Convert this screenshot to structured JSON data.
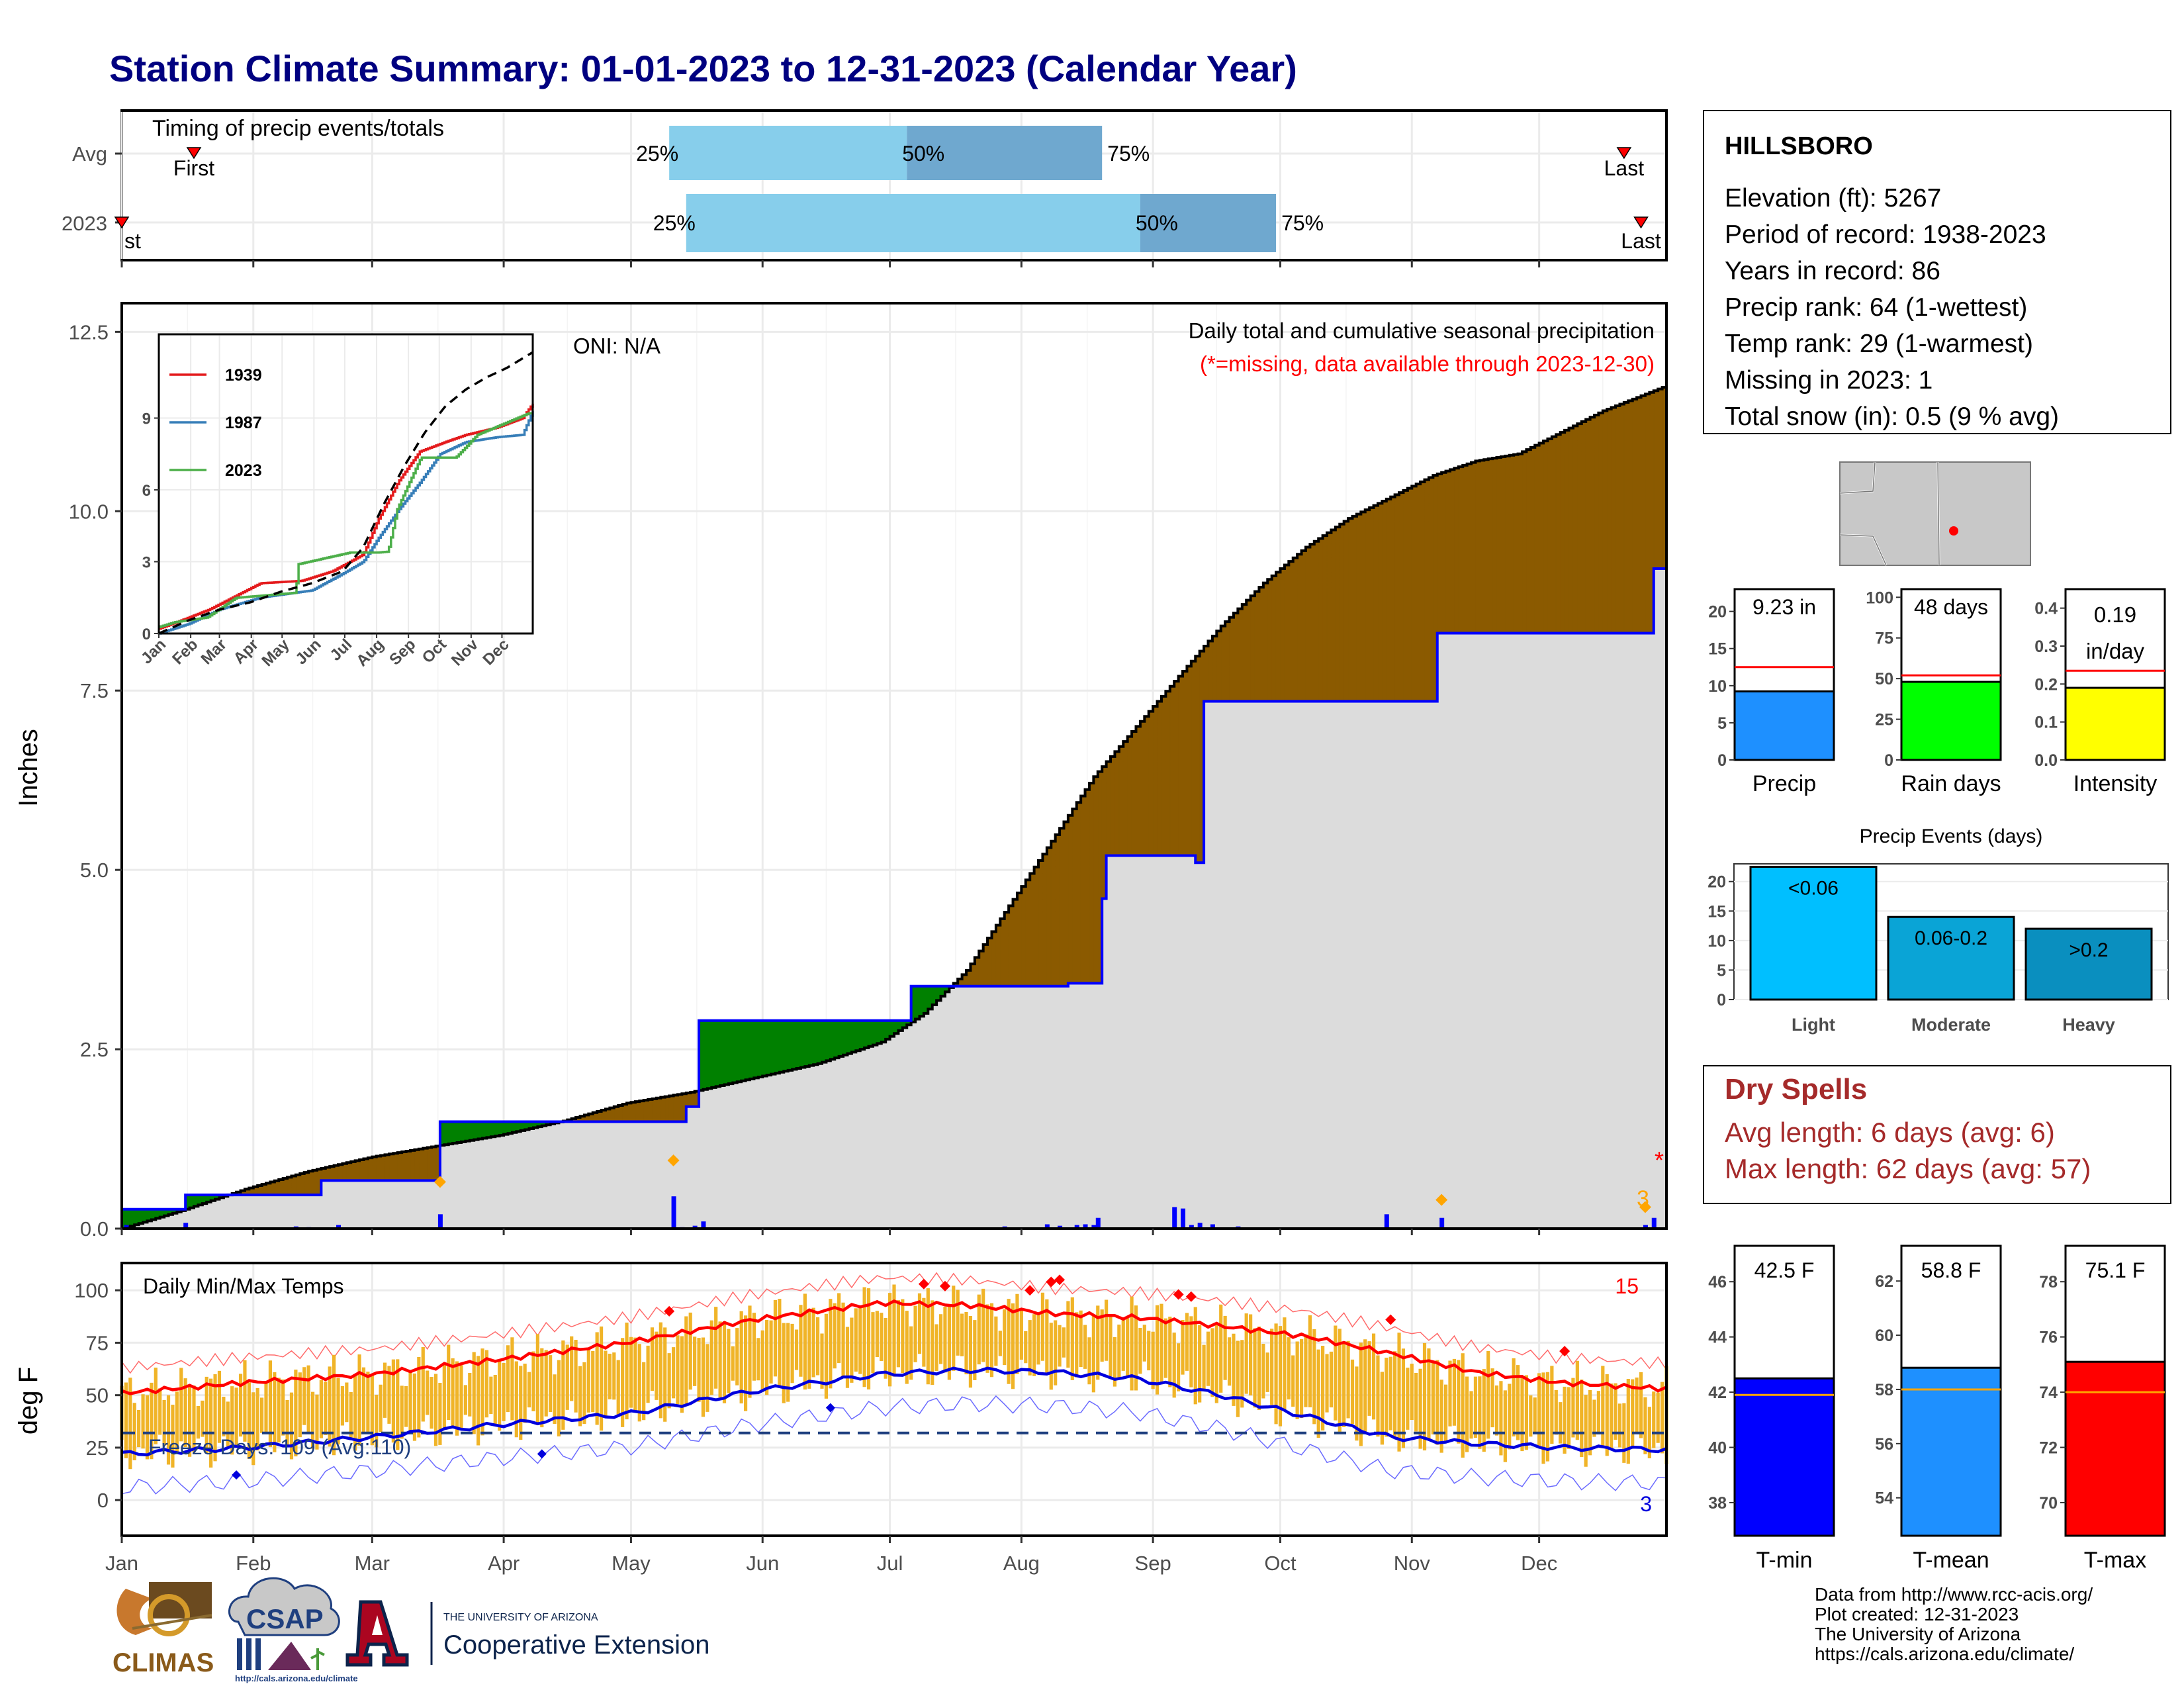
{
  "title": "Station Climate Summary: 01-01-2023 to 12-31-2023 (Calendar Year)",
  "colors": {
    "title": "#000080",
    "cumulative_2023": "#dcdcdc",
    "deficit": "#8b5a00",
    "surplus": "#008000",
    "avg_line": "#000000",
    "current_line": "#0000ff",
    "temp_bars": "#f0b428",
    "tmax_avg": "#ff0000",
    "tmin_avg": "#0000dd",
    "freeze_line": "#1f3f7f",
    "precip_tile": "#1e90ff",
    "raindays_tile": "#00ff00",
    "intensity_tile": "#ffff00",
    "light": "#00bfff",
    "moderate": "#0aa4d6",
    "heavy": "#0a8fbf",
    "dry_spell": "#a52a2a",
    "tmin_tile": "#0000ff",
    "tmean_tile": "#1e90ff",
    "tmax_tile": "#ff0000"
  },
  "timing": {
    "title": "Timing of precip events/totals",
    "rows": [
      {
        "label": "Avg",
        "p25": "25%",
        "p50": "50%",
        "p75": "75%",
        "first": "First",
        "last": "Last",
        "values": {
          "first": 18,
          "p25": 130,
          "p50": 186,
          "p75": 232,
          "last": 355
        }
      },
      {
        "label": "2023",
        "p25": "25%",
        "p50": "50%",
        "p75": "75%",
        "first": "First",
        "last": "Last",
        "values": {
          "first": 1,
          "p25": 134,
          "p50": 241,
          "p75": 273,
          "last": 359
        }
      }
    ],
    "first_clipped_text": "st"
  },
  "chart_data": [
    {
      "type": "area",
      "name": "cumulative-precip",
      "title": "Daily total and cumulative seasonal precipitation",
      "subtitle": "(*=missing, data available through 2023-12-30)",
      "annotation": "ONI: N/A",
      "ylabel": "Inches",
      "ylim": [
        0,
        12.9
      ],
      "yticks": [
        "0.0",
        "2.5",
        "5.0",
        "7.5",
        "10.0",
        "12.5"
      ],
      "xlim": [
        1,
        365
      ],
      "xticks": [
        "Jan",
        "Feb",
        "Mar",
        "Apr",
        "May",
        "Jun",
        "Jul",
        "Aug",
        "Sep",
        "Oct",
        "Nov",
        "Dec"
      ],
      "avg_cumulative": {
        "day": [
          1,
          15,
          30,
          45,
          60,
          75,
          90,
          105,
          120,
          135,
          150,
          165,
          180,
          190,
          200,
          210,
          220,
          230,
          240,
          250,
          260,
          270,
          280,
          290,
          300,
          310,
          320,
          330,
          340,
          350,
          365
        ],
        "value": [
          0.0,
          0.25,
          0.55,
          0.8,
          1.0,
          1.15,
          1.3,
          1.5,
          1.75,
          1.9,
          2.1,
          2.3,
          2.6,
          3.0,
          3.6,
          4.5,
          5.4,
          6.3,
          7.0,
          7.7,
          8.4,
          9.0,
          9.5,
          9.9,
          10.2,
          10.5,
          10.7,
          10.8,
          11.1,
          11.4,
          11.75
        ]
      },
      "current_cumulative": {
        "day": [
          1,
          16,
          48,
          76,
          131,
          134,
          137,
          187,
          214,
          224,
          232,
          233,
          254,
          256,
          270,
          290,
          311,
          361,
          362,
          365
        ],
        "value": [
          0.27,
          0.47,
          0.67,
          1.49,
          1.49,
          1.7,
          2.9,
          3.38,
          3.38,
          3.42,
          4.6,
          5.2,
          5.1,
          7.35,
          7.35,
          7.35,
          8.3,
          8.3,
          9.2,
          9.2
        ]
      },
      "daily_precip": {
        "day": [
          2,
          16,
          42,
          45,
          52,
          76,
          131,
          133,
          136,
          138,
          209,
          219,
          222,
          226,
          228,
          230,
          231,
          249,
          251,
          253,
          255,
          258,
          264,
          299,
          312,
          360,
          362
        ],
        "value": [
          0.05,
          0.08,
          0.03,
          0.02,
          0.05,
          0.2,
          0.45,
          0.02,
          0.04,
          0.1,
          0.03,
          0.06,
          0.04,
          0.05,
          0.06,
          0.05,
          0.15,
          0.3,
          0.28,
          0.05,
          0.08,
          0.06,
          0.03,
          0.2,
          0.15,
          0.05,
          0.15
        ]
      },
      "record_markers": {
        "day": [
          76,
          131,
          312,
          360
        ],
        "value": [
          0.65,
          0.95,
          0.4,
          0.3
        ]
      },
      "missing_marker": "*",
      "count_label": "3",
      "inset": {
        "type": "line",
        "yticks": [
          "0",
          "3",
          "6",
          "9"
        ],
        "xticks": [
          "Jan",
          "Feb",
          "Mar",
          "Apr",
          "May",
          "Jun",
          "Jul",
          "Aug",
          "Sep",
          "Oct",
          "Nov",
          "Dec"
        ],
        "ylim": [
          0,
          12.5
        ],
        "series": [
          {
            "name": "1939",
            "color": "#e41a1c",
            "day": [
              1,
              20,
              50,
              100,
              140,
              170,
              200,
              215,
              235,
              255,
              280,
              300,
              330,
              355,
              365
            ],
            "value": [
              0.2,
              0.5,
              1.0,
              2.1,
              2.2,
              2.6,
              3.3,
              4.8,
              6.4,
              7.6,
              8.0,
              8.3,
              8.6,
              9.0,
              9.6
            ]
          },
          {
            "name": "1987",
            "color": "#377eb8",
            "day": [
              1,
              30,
              60,
              100,
              150,
              180,
              200,
              215,
              235,
              255,
              275,
              300,
              330,
              355,
              365
            ],
            "value": [
              0.0,
              0.4,
              1.0,
              1.5,
              1.8,
              2.5,
              3.0,
              4.0,
              5.2,
              6.3,
              7.5,
              8.0,
              8.2,
              8.3,
              9.3
            ]
          },
          {
            "name": "2023",
            "color": "#4daf4a",
            "day": [
              1,
              16,
              48,
              76,
              134,
              137,
              187,
              214,
              224,
              233,
              256,
              290,
              311,
              361,
              365
            ],
            "value": [
              0.27,
              0.47,
              0.67,
              1.49,
              1.7,
              2.9,
              3.38,
              3.38,
              3.42,
              5.2,
              7.35,
              7.35,
              8.3,
              9.2,
              9.2
            ]
          }
        ],
        "avg_line": {
          "day": [
            1,
            30,
            60,
            90,
            120,
            150,
            180,
            200,
            220,
            240,
            260,
            280,
            300,
            320,
            340,
            365
          ],
          "value": [
            0.0,
            0.55,
            1.0,
            1.3,
            1.75,
            2.1,
            2.6,
            3.6,
            5.4,
            7.0,
            8.4,
            9.5,
            10.2,
            10.7,
            11.1,
            11.75
          ]
        }
      }
    },
    {
      "type": "bar",
      "name": "daily-temps",
      "title": "Daily Min/Max Temps",
      "ylabel": "deg F",
      "ylim": [
        -17,
        113
      ],
      "yticks": [
        "0",
        "25",
        "50",
        "75",
        "100"
      ],
      "xticks": [
        "Jan",
        "Feb",
        "Mar",
        "Apr",
        "May",
        "Jun",
        "Jul",
        "Aug",
        "Sep",
        "Oct",
        "Nov",
        "Dec"
      ],
      "freeze_days_text": "Freeze Days: 109 (Avg:110)",
      "freeze_threshold": 32,
      "record_high_count": "15",
      "record_low_count": "3",
      "avg_tmax": {
        "day": [
          1,
          30,
          60,
          90,
          120,
          150,
          180,
          200,
          220,
          240,
          260,
          280,
          300,
          320,
          340,
          365
        ],
        "value": [
          51,
          56,
          60,
          67,
          75,
          86,
          94,
          93,
          89,
          87,
          83,
          78,
          70,
          61,
          56,
          53
        ]
      },
      "avg_tmin": {
        "day": [
          1,
          30,
          60,
          90,
          120,
          150,
          180,
          200,
          220,
          240,
          260,
          280,
          300,
          320,
          340,
          365
        ],
        "value": [
          22,
          25,
          30,
          36,
          41,
          52,
          60,
          62,
          61,
          58,
          50,
          40,
          30,
          27,
          25,
          24
        ]
      }
    }
  ],
  "station": {
    "name": "HILLSBORO",
    "lines": [
      "Elevation (ft): 5267",
      "Period of record: 1938-2023",
      "Years in record: 86",
      "Precip rank: 64 (1-wettest)",
      "Temp rank: 29 (1-warmest)",
      "Missing in 2023: 1",
      "Total snow (in): 0.5 (9 % avg)"
    ]
  },
  "precip_tiles": [
    {
      "value_text": "9.23 in",
      "label": "Precip",
      "yticks": [
        "0",
        "5",
        "10",
        "15",
        "20"
      ],
      "ylim": [
        0,
        23
      ],
      "value": 9.23,
      "avg": 12.5
    },
    {
      "value_text": "48 days",
      "label": "Rain days",
      "yticks": [
        "0",
        "25",
        "50",
        "75",
        "100"
      ],
      "ylim": [
        0,
        105
      ],
      "value": 48,
      "avg": 52
    },
    {
      "value_text": "0.19 in/day",
      "value_lines": [
        "0.19",
        "in/day"
      ],
      "label": "Intensity",
      "yticks": [
        "0.0",
        "0.1",
        "0.2",
        "0.3",
        "0.4"
      ],
      "ylim": [
        0,
        0.45
      ],
      "value": 0.19,
      "avg": 0.235
    }
  ],
  "precip_events": {
    "title": "Precip Events (days)",
    "yticks": [
      "0",
      "5",
      "10",
      "15",
      "20"
    ],
    "ylim": [
      0,
      23
    ],
    "bars": [
      {
        "label": "Light",
        "range": "<0.06",
        "value": 22.5
      },
      {
        "label": "Moderate",
        "range": "0.06-0.2",
        "value": 14
      },
      {
        "label": "Heavy",
        "range": ">0.2",
        "value": 12
      }
    ]
  },
  "dry_spells": {
    "title": "Dry Spells",
    "avg_length": "Avg length: 6 days (avg: 6)",
    "max_length": "Max length: 62 days (avg: 57)"
  },
  "temp_tiles": [
    {
      "value_text": "42.5 F",
      "label": "T-min",
      "yticks": [
        "38",
        "40",
        "42",
        "44",
        "46"
      ],
      "ylim": [
        36.8,
        47.3
      ],
      "value": 42.5,
      "avg": 41.9
    },
    {
      "value_text": "58.8 F",
      "label": "T-mean",
      "yticks": [
        "54",
        "56",
        "58",
        "60",
        "62"
      ],
      "ylim": [
        52.6,
        63.3
      ],
      "value": 58.8,
      "avg": 58.0
    },
    {
      "value_text": "75.1 F",
      "label": "T-max",
      "yticks": [
        "70",
        "72",
        "74",
        "76",
        "78"
      ],
      "ylim": [
        68.8,
        79.3
      ],
      "value": 75.1,
      "avg": 74.0
    }
  ],
  "logos": {
    "climas": "CLIMAS",
    "csap": "CSAP",
    "csap_url": "http://cals.arizona.edu/climate",
    "ua_top": "THE UNIVERSITY OF ARIZONA",
    "ua_bottom": "Cooperative Extension"
  },
  "credits": [
    "Data from http://www.rcc-acis.org/",
    "Plot created: 12-31-2023",
    "The University of Arizona",
    "https://cals.arizona.edu/climate/"
  ]
}
